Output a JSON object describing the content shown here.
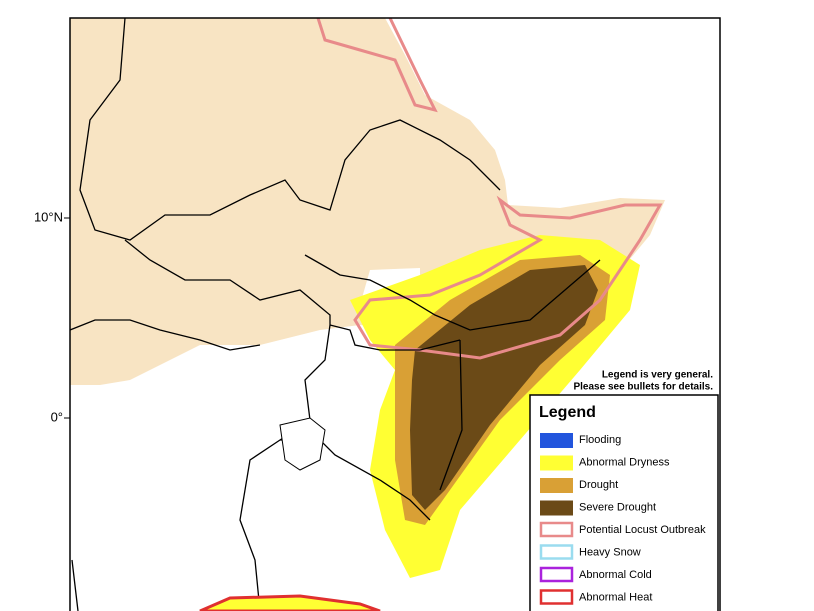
{
  "map": {
    "axis_labels": [
      "10°N",
      "0°"
    ],
    "note": [
      "Legend is very general.",
      "Please see bullets for details."
    ],
    "legend": {
      "title": "Legend",
      "items": [
        {
          "label": "Flooding",
          "color": "#2255dd",
          "kind": "fill"
        },
        {
          "label": "Abnormal Dryness",
          "color": "#ffff33",
          "kind": "fill"
        },
        {
          "label": "Drought",
          "color": "#d9a035",
          "kind": "fill"
        },
        {
          "label": "Severe Drought",
          "color": "#6b4a17",
          "kind": "fill"
        },
        {
          "label": "Potential Locust Outbreak",
          "color": "#e88a8a",
          "kind": "outline"
        },
        {
          "label": "Heavy Snow",
          "color": "#9adcef",
          "kind": "outline"
        },
        {
          "label": "Abnormal Cold",
          "color": "#aa22dd",
          "kind": "outline"
        },
        {
          "label": "Abnormal Heat",
          "color": "#e03030",
          "kind": "outline"
        }
      ]
    }
  }
}
